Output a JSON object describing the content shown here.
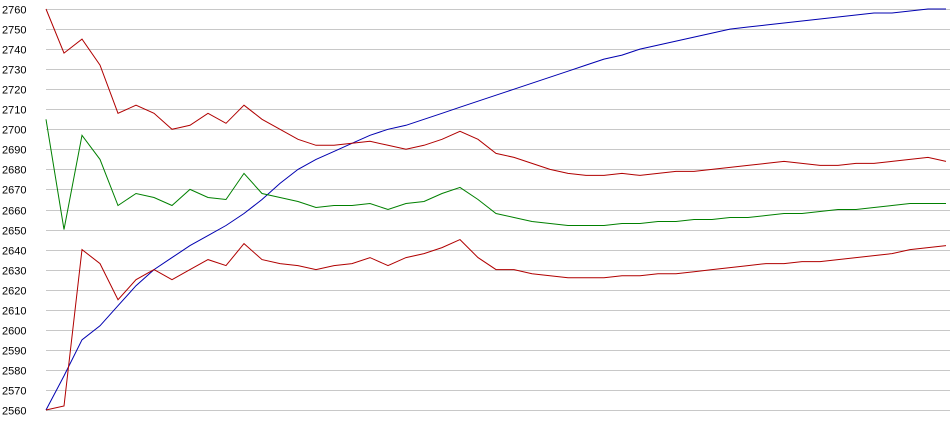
{
  "chart_data": {
    "type": "line",
    "title": "",
    "xlabel": "",
    "ylabel": "",
    "ylim": [
      2560,
      2760
    ],
    "yticks": [
      2560,
      2570,
      2580,
      2590,
      2600,
      2610,
      2620,
      2630,
      2640,
      2650,
      2660,
      2670,
      2680,
      2690,
      2700,
      2710,
      2720,
      2730,
      2740,
      2750,
      2760
    ],
    "grid": true,
    "legend": "none",
    "x": [
      0,
      2,
      4,
      6,
      8,
      10,
      12,
      14,
      16,
      18,
      20,
      22,
      24,
      26,
      28,
      30,
      32,
      34,
      36,
      38,
      40,
      42,
      44,
      46,
      48,
      50,
      52,
      54,
      56,
      58,
      60,
      62,
      64,
      66,
      68,
      70,
      72,
      74,
      76,
      78,
      80,
      82,
      84,
      86,
      88,
      90,
      92,
      94,
      96,
      98,
      100
    ],
    "xlim": [
      0,
      100
    ],
    "series": [
      {
        "color": "#0000b0",
        "values": [
          2560,
          2577,
          2595,
          2602,
          2612,
          2622,
          2630,
          2636,
          2642,
          2647,
          2652,
          2658,
          2665,
          2673,
          2680,
          2685,
          2689,
          2693,
          2697,
          2700,
          2702,
          2705,
          2708,
          2711,
          2714,
          2717,
          2720,
          2723,
          2726,
          2729,
          2732,
          2735,
          2737,
          2740,
          2742,
          2744,
          2746,
          2748,
          2750,
          2751,
          2752,
          2753,
          2754,
          2755,
          2756,
          2757,
          2758,
          2758,
          2759,
          2760,
          2760
        ]
      },
      {
        "color": "#b00000",
        "values": [
          2760,
          2738,
          2745,
          2732,
          2708,
          2712,
          2708,
          2700,
          2702,
          2708,
          2703,
          2712,
          2705,
          2700,
          2695,
          2692,
          2692,
          2693,
          2694,
          2692,
          2690,
          2692,
          2695,
          2699,
          2695,
          2688,
          2686,
          2683,
          2680,
          2678,
          2677,
          2677,
          2678,
          2677,
          2678,
          2679,
          2679,
          2680,
          2681,
          2682,
          2683,
          2684,
          2683,
          2682,
          2682,
          2683,
          2683,
          2684,
          2685,
          2686,
          2684
        ]
      },
      {
        "color": "#008000",
        "values": [
          2705,
          2650,
          2697,
          2685,
          2662,
          2668,
          2666,
          2662,
          2670,
          2666,
          2665,
          2678,
          2668,
          2666,
          2664,
          2661,
          2662,
          2662,
          2663,
          2660,
          2663,
          2664,
          2668,
          2671,
          2665,
          2658,
          2656,
          2654,
          2653,
          2652,
          2652,
          2652,
          2653,
          2653,
          2654,
          2654,
          2655,
          2655,
          2656,
          2656,
          2657,
          2658,
          2658,
          2659,
          2660,
          2660,
          2661,
          2662,
          2663,
          2663,
          2663
        ]
      },
      {
        "color": "#b00000",
        "values": [
          2560,
          2562,
          2640,
          2633,
          2615,
          2625,
          2630,
          2625,
          2630,
          2635,
          2632,
          2643,
          2635,
          2633,
          2632,
          2630,
          2632,
          2633,
          2636,
          2632,
          2636,
          2638,
          2641,
          2645,
          2636,
          2630,
          2630,
          2628,
          2627,
          2626,
          2626,
          2626,
          2627,
          2627,
          2628,
          2628,
          2629,
          2630,
          2631,
          2632,
          2633,
          2633,
          2634,
          2634,
          2635,
          2636,
          2637,
          2638,
          2640,
          2641,
          2642
        ]
      }
    ]
  }
}
